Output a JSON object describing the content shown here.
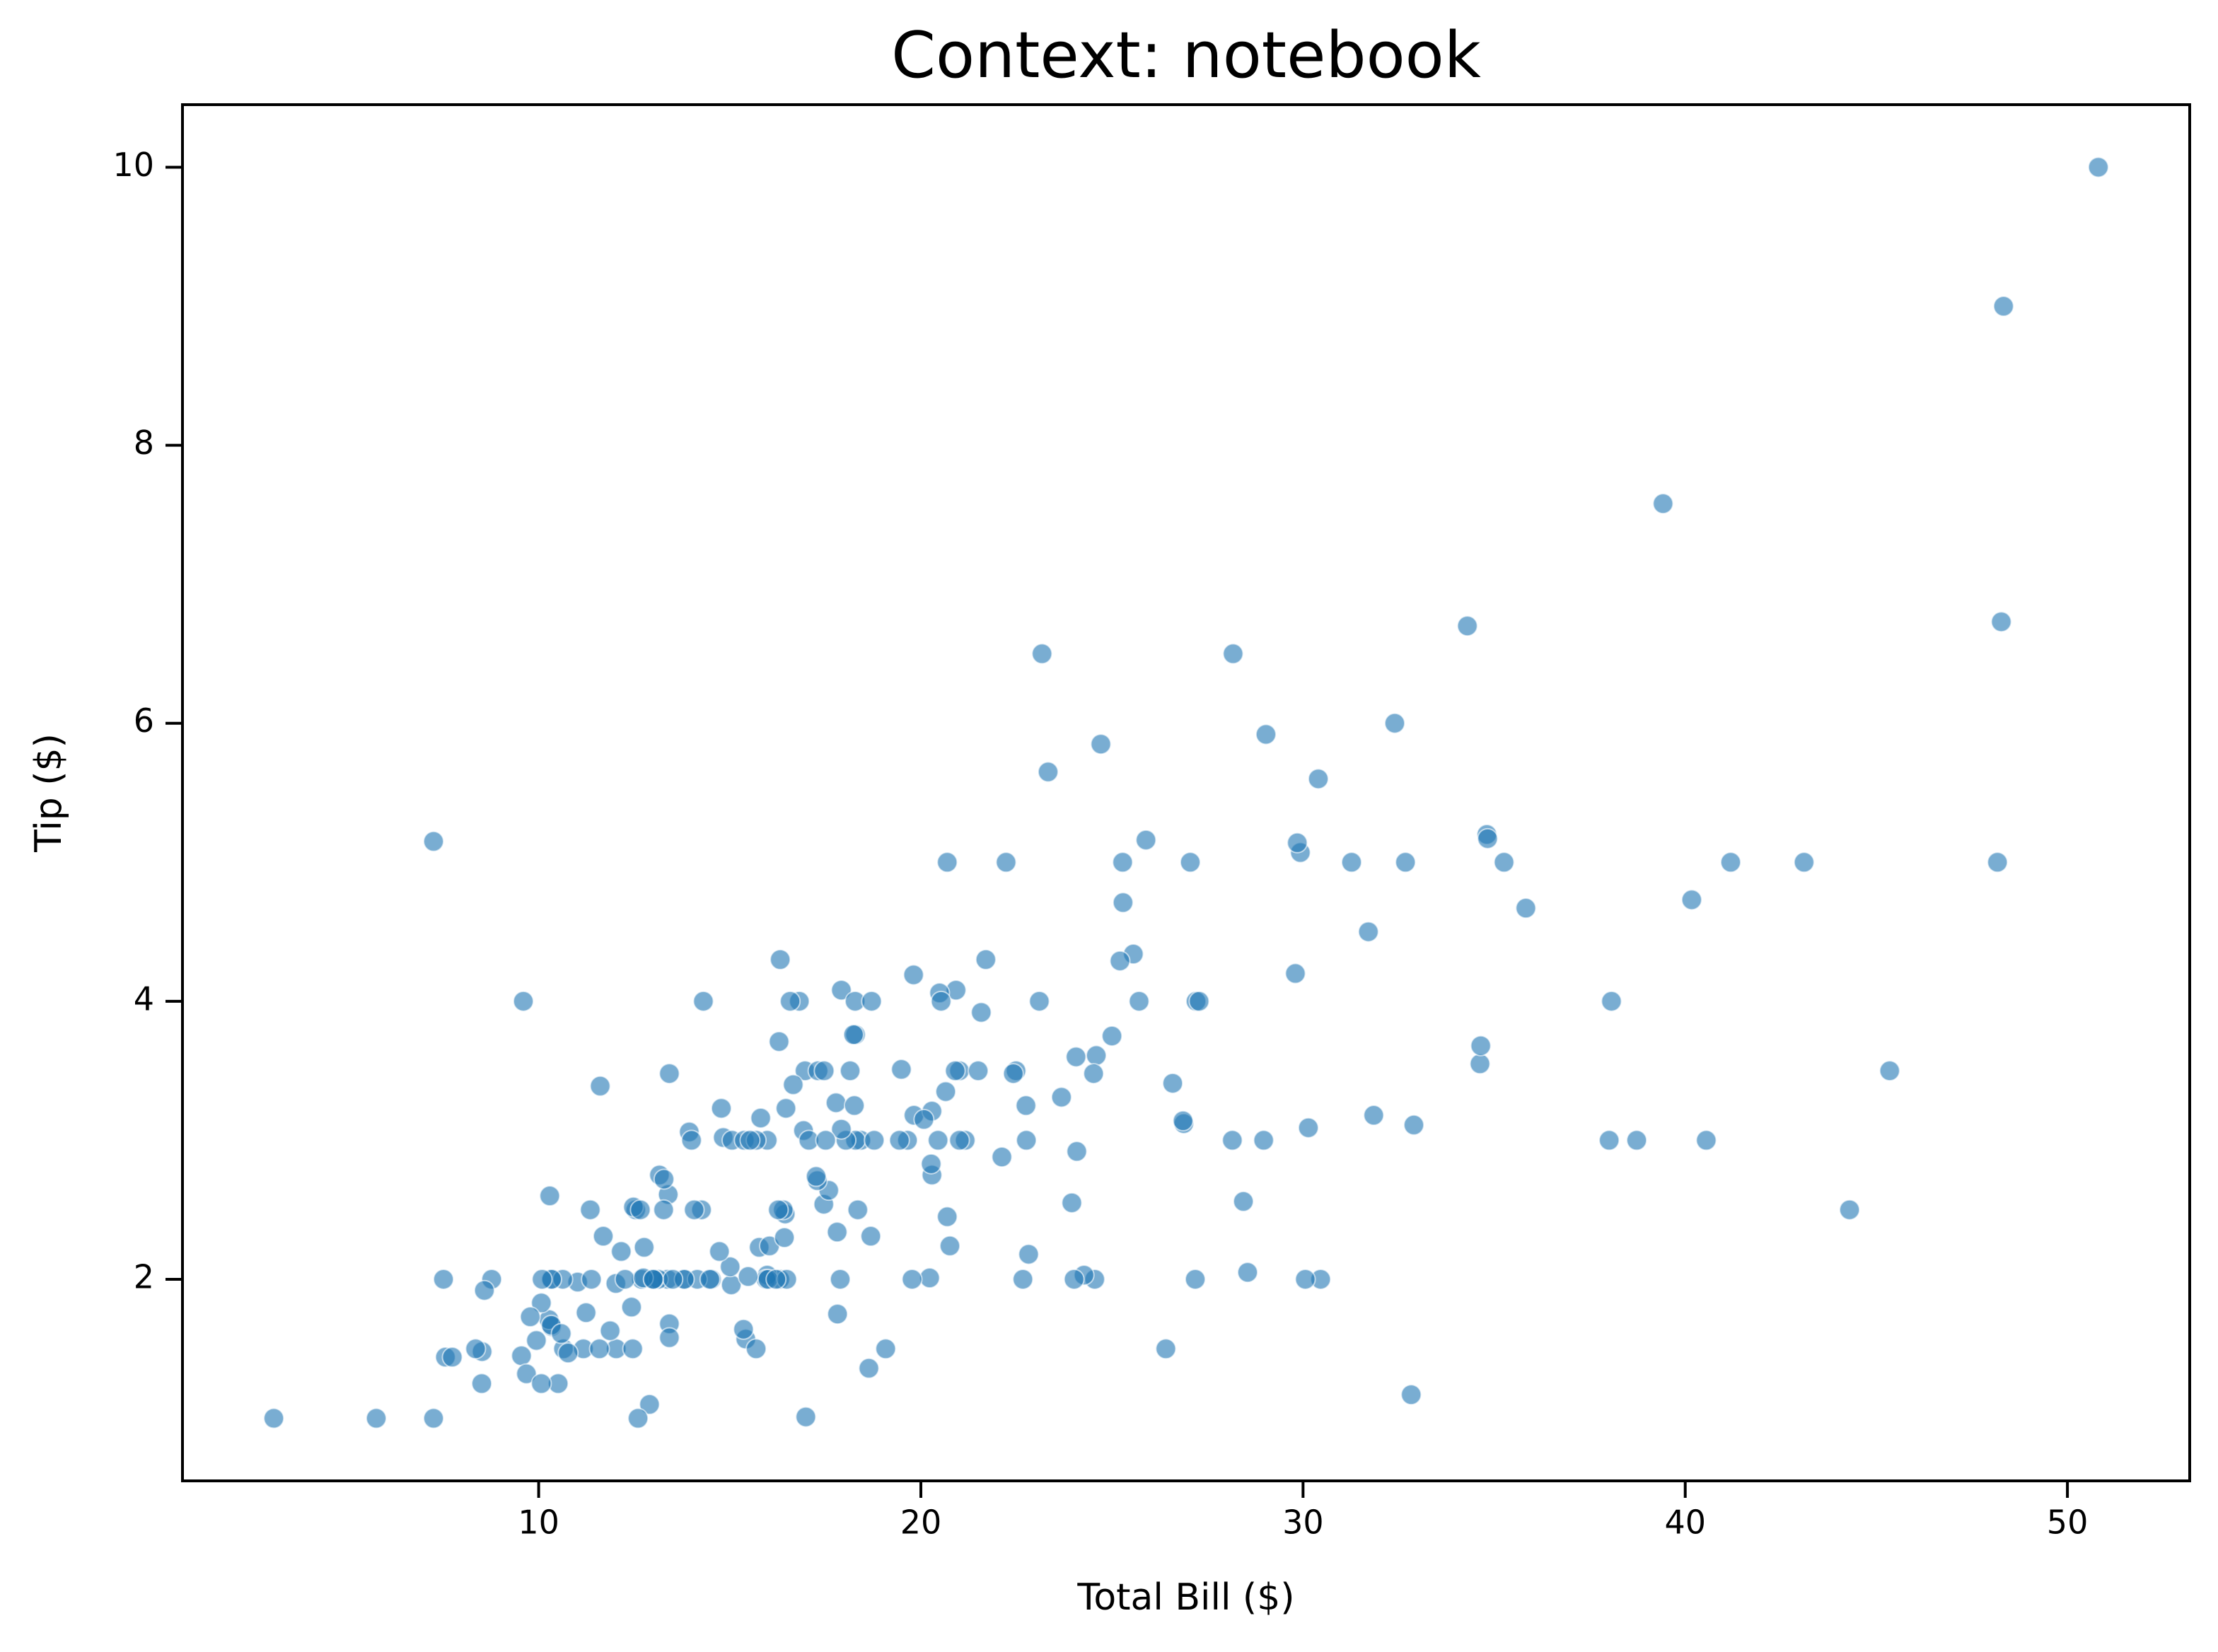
{
  "chart_data": {
    "type": "scatter",
    "title": "Context: notebook",
    "x_label": "Total Bill ($)",
    "y_label": "Tip ($)",
    "color": "#1f77b4",
    "opacity": 0.6,
    "xlim": [
      0.68,
      53.2
    ],
    "ylim": [
      0.55,
      10.45
    ],
    "xticks": [
      10,
      20,
      30,
      40,
      50
    ],
    "yticks": [
      2,
      4,
      6,
      8,
      10
    ],
    "x": [
      16.99,
      10.34,
      21.01,
      23.68,
      24.59,
      25.29,
      8.77,
      26.88,
      15.04,
      14.78,
      10.27,
      35.26,
      15.42,
      18.43,
      14.83,
      21.58,
      10.33,
      16.29,
      16.97,
      20.65,
      17.92,
      20.29,
      15.77,
      39.42,
      19.82,
      17.81,
      13.37,
      12.69,
      21.7,
      19.65,
      9.55,
      18.35,
      15.06,
      20.69,
      17.78,
      24.06,
      16.31,
      16.93,
      18.69,
      31.27,
      16.04,
      17.46,
      13.94,
      9.68,
      30.4,
      18.29,
      22.23,
      32.4,
      28.55,
      18.04,
      12.54,
      10.29,
      34.81,
      9.94,
      25.56,
      19.49,
      38.01,
      26.41,
      11.24,
      48.27,
      20.29,
      13.81,
      11.02,
      18.29,
      17.59,
      20.08,
      16.45,
      3.07,
      20.23,
      15.01,
      12.02,
      17.07,
      26.86,
      25.28,
      14.73,
      10.51,
      17.92,
      27.2,
      22.76,
      17.29,
      19.44,
      16.66,
      10.07,
      32.68,
      15.98,
      34.83,
      13.03,
      18.28,
      24.71,
      21.16,
      28.97,
      22.49,
      5.75,
      16.32,
      22.75,
      40.17,
      27.28,
      12.03,
      21.01,
      12.46,
      11.35,
      15.38,
      44.3,
      22.42,
      20.92,
      15.36,
      20.49,
      25.21,
      18.24,
      14.31,
      14.0,
      7.25,
      38.07,
      23.95,
      25.71,
      17.31,
      29.93,
      10.65,
      12.43,
      24.08,
      11.69,
      13.42,
      14.26,
      15.95,
      12.48,
      29.8,
      8.52,
      14.52,
      11.38,
      22.82,
      19.08,
      20.27,
      11.17,
      12.26,
      18.26,
      8.51,
      10.33,
      14.15,
      16.0,
      13.16,
      17.47,
      34.3,
      41.19,
      27.05,
      16.43,
      8.35,
      18.64,
      11.87,
      9.78,
      7.51,
      14.07,
      13.13,
      17.26,
      24.55,
      19.77,
      29.85,
      48.17,
      25.0,
      13.39,
      16.49,
      21.5,
      12.66,
      16.21,
      13.81,
      17.51,
      24.52,
      20.76,
      31.71,
      10.59,
      10.63,
      50.81,
      15.81,
      7.25,
      31.85,
      16.82,
      32.9,
      17.89,
      14.48,
      9.6,
      34.63,
      34.65,
      23.33,
      45.35,
      23.17,
      40.55,
      20.69,
      20.9,
      30.46,
      18.15,
      23.1,
      15.69,
      19.81,
      28.44,
      15.48,
      16.58,
      7.56,
      10.34,
      43.11,
      13.0,
      13.51,
      18.71,
      12.74,
      13.0,
      16.4,
      20.53,
      16.47,
      26.59,
      38.73,
      24.27,
      12.76,
      30.06,
      25.89,
      48.33,
      13.27,
      28.17,
      12.9,
      28.15,
      11.59,
      7.74,
      30.14,
      12.16,
      13.42,
      8.58,
      15.98,
      13.42,
      16.27,
      10.09,
      20.45,
      13.28,
      22.12,
      24.01,
      15.69,
      11.61,
      10.77,
      15.53,
      10.07,
      12.6,
      32.83,
      35.83,
      29.03,
      27.18,
      22.67,
      17.82,
      18.78
    ],
    "y": [
      1.01,
      1.66,
      3.5,
      3.31,
      3.61,
      4.71,
      2.0,
      3.12,
      1.96,
      3.23,
      1.71,
      5.0,
      1.57,
      3.0,
      3.02,
      3.92,
      1.67,
      3.71,
      3.5,
      3.35,
      4.08,
      2.75,
      2.23,
      7.58,
      3.18,
      2.34,
      2.0,
      2.0,
      4.3,
      3.0,
      1.45,
      2.5,
      3.0,
      2.45,
      3.27,
      3.6,
      2.0,
      3.07,
      2.31,
      5.0,
      2.24,
      2.54,
      3.06,
      1.32,
      5.6,
      3.0,
      5.0,
      6.0,
      2.05,
      3.0,
      2.5,
      2.6,
      5.2,
      1.56,
      4.34,
      3.51,
      3.0,
      1.5,
      1.76,
      6.73,
      3.21,
      2.0,
      1.98,
      3.76,
      2.64,
      3.15,
      2.47,
      1.0,
      2.01,
      2.09,
      1.97,
      3.0,
      3.14,
      5.0,
      2.2,
      1.25,
      3.08,
      4.0,
      3.0,
      2.71,
      3.0,
      3.4,
      1.83,
      5.0,
      2.03,
      5.17,
      2.0,
      4.0,
      5.85,
      3.0,
      3.0,
      3.5,
      1.0,
      4.3,
      3.25,
      4.73,
      4.0,
      1.5,
      3.0,
      1.5,
      2.5,
      3.0,
      2.5,
      3.48,
      4.08,
      1.64,
      4.06,
      4.29,
      3.76,
      4.0,
      3.0,
      1.0,
      4.0,
      2.55,
      4.0,
      3.5,
      5.07,
      1.5,
      1.8,
      2.92,
      2.31,
      1.68,
      2.5,
      2.0,
      2.52,
      4.2,
      1.48,
      2.0,
      2.0,
      2.18,
      1.5,
      2.83,
      1.5,
      2.0,
      3.25,
      1.25,
      2.0,
      2.0,
      2.0,
      2.75,
      3.5,
      6.7,
      5.0,
      5.0,
      2.3,
      1.5,
      1.36,
      1.63,
      1.73,
      2.0,
      2.5,
      2.0,
      2.74,
      2.0,
      2.0,
      5.14,
      5.0,
      3.75,
      2.61,
      2.0,
      3.5,
      2.5,
      2.0,
      2.0,
      3.0,
      3.48,
      2.24,
      4.5,
      1.61,
      2.0,
      10.0,
      3.16,
      5.15,
      3.18,
      4.0,
      3.11,
      2.0,
      2.0,
      4.0,
      3.55,
      3.68,
      5.65,
      3.5,
      6.5,
      3.0,
      5.0,
      3.5,
      2.0,
      3.5,
      4.0,
      1.5,
      4.19,
      2.56,
      2.02,
      4.0,
      1.44,
      2.0,
      5.0,
      2.0,
      2.0,
      4.0,
      2.01,
      2.0,
      2.5,
      4.0,
      3.23,
      3.41,
      3.0,
      2.03,
      2.23,
      2.0,
      5.16,
      9.0,
      2.5,
      6.5,
      1.1,
      3.0,
      1.5,
      1.44,
      3.09,
      2.2,
      3.48,
      1.92,
      3.0,
      1.58,
      2.5,
      2.0,
      3.0,
      2.72,
      2.88,
      2.0,
      3.0,
      3.39,
      1.47,
      3.0,
      1.25,
      1.0,
      1.17,
      4.67,
      5.92,
      2.0,
      2.0,
      1.75,
      3.0
    ]
  }
}
